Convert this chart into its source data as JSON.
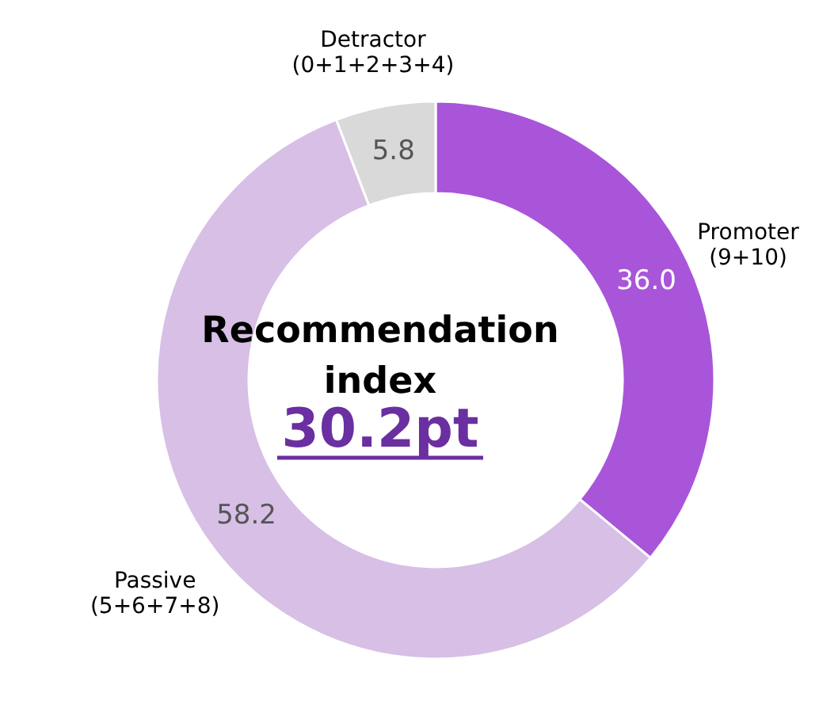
{
  "chart_data": {
    "type": "donut",
    "categories": [
      "Promoter\n(9+10)",
      "Passive\n(5+6+7+8)",
      "Detractor\n(0+1+2+3+4)"
    ],
    "values": [
      36.0,
      58.2,
      5.8
    ],
    "colors": [
      "#a855da",
      "#d7bfe6",
      "#d9d9d9"
    ],
    "value_labels": [
      "36.0",
      "58.2",
      "5.8"
    ],
    "annotations": [
      "Recommendation\nindex",
      "30.2pt"
    ]
  }
}
